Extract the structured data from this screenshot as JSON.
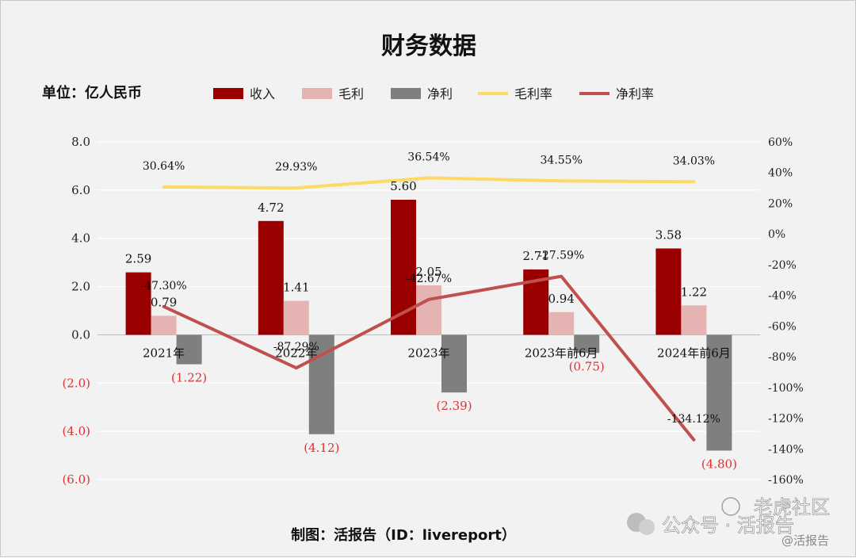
{
  "chart_data": {
    "type": "bar",
    "title": "财务数据",
    "unit_label": "单位：亿人民币",
    "categories": [
      "2021年",
      "2022年",
      "2023年",
      "2023年前6月",
      "2024年前6月"
    ],
    "series": [
      {
        "name": "收入",
        "kind": "bar",
        "axis": "left",
        "color": "#9b0000",
        "values": [
          2.59,
          4.72,
          5.6,
          2.71,
          3.58
        ]
      },
      {
        "name": "毛利",
        "kind": "bar",
        "axis": "left",
        "color": "#e6b3b3",
        "values": [
          0.79,
          1.41,
          2.05,
          0.94,
          1.22
        ]
      },
      {
        "name": "净利",
        "kind": "bar",
        "axis": "left",
        "color": "#7f7f7f",
        "values": [
          -1.22,
          -4.12,
          -2.39,
          -0.75,
          -4.8
        ]
      },
      {
        "name": "毛利率",
        "kind": "line",
        "axis": "right",
        "color": "#ffd966",
        "values": [
          30.64,
          29.93,
          36.54,
          34.55,
          34.03
        ]
      },
      {
        "name": "净利率",
        "kind": "line",
        "axis": "right",
        "color": "#c0504d",
        "values": [
          -47.3,
          -87.29,
          -42.67,
          -27.59,
          -134.12
        ]
      }
    ],
    "bar_labels": {
      "收入": [
        "2.59",
        "4.72",
        "5.60",
        "2.71",
        "3.58"
      ],
      "毛利": [
        "0.79",
        "1.41",
        "2.05",
        "0.94",
        "1.22"
      ],
      "净利": [
        "(1.22)",
        "(4.12)",
        "(2.39)",
        "(0.75)",
        "(4.80)"
      ]
    },
    "line_labels": {
      "毛利率": [
        "30.64%",
        "29.93%",
        "36.54%",
        "34.55%",
        "34.03%"
      ],
      "净利率": [
        "-47.30%",
        "-87.29%",
        "-42.67%",
        "-27.59%",
        "-134.12%"
      ]
    },
    "left_axis": {
      "ylim": [
        -6,
        8
      ],
      "ticks": [
        8,
        6,
        4,
        2,
        0,
        -2,
        -4,
        -6
      ],
      "tick_labels": [
        "8.0",
        "6.0",
        "4.0",
        "2.0",
        "0.0",
        "(2.0)",
        "(4.0)",
        "(6.0)"
      ]
    },
    "right_axis": {
      "ylim": [
        -160,
        60
      ],
      "ticks": [
        60,
        40,
        20,
        0,
        -20,
        -40,
        -60,
        -80,
        -100,
        -120,
        -140,
        -160
      ],
      "tick_labels": [
        "60%",
        "40%",
        "20%",
        "0%",
        "-20%",
        "-40%",
        "-60%",
        "-80%",
        "-100%",
        "-120%",
        "-140%",
        "-160%"
      ]
    },
    "grid": true,
    "legend_position": "top"
  },
  "credit": "制图：活报告（ID：livereport）",
  "watermark": {
    "brand": "老虎社区",
    "account": "公众号 · 活报告",
    "handle": "@活报告"
  }
}
